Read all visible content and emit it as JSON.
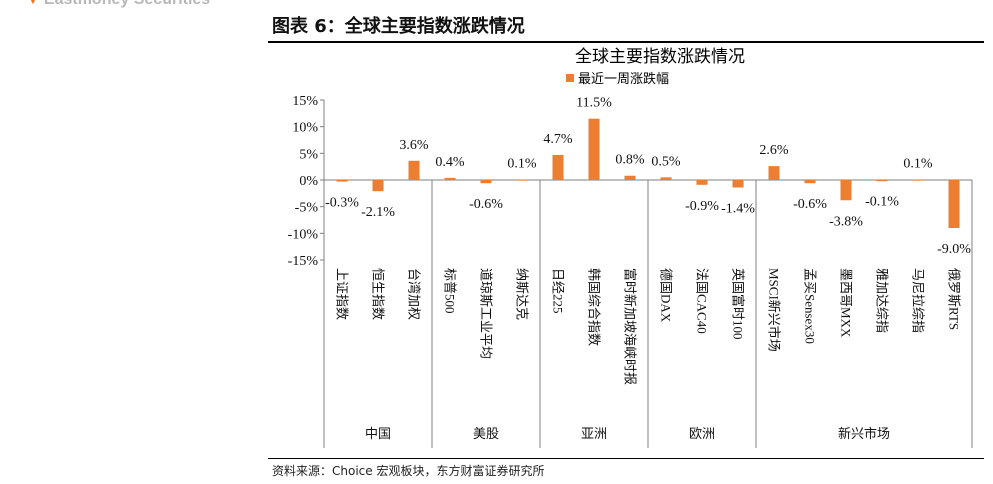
{
  "header": {
    "fragment": "Eastmoney Securities",
    "figure_title": "图表 6：全球主要指数涨跌情况",
    "source": "资料来源：Choice 宏观板块，东方财富证券研究所"
  },
  "colors": {
    "bar": "#ed7d31",
    "axis": "#7f7f7f",
    "text": "#111111"
  },
  "chart_data": {
    "type": "bar",
    "title": "全球主要指数涨跌情况",
    "legend": {
      "entries": [
        "最近一周涨跌幅"
      ],
      "placement": "top"
    },
    "ylim": [
      -15,
      15
    ],
    "yticks": [
      15,
      10,
      5,
      0,
      -5,
      -10,
      -15
    ],
    "ytick_labels": [
      "15%",
      "10%",
      "5%",
      "0%",
      "-5%",
      "-10%",
      "-15%"
    ],
    "grid": false,
    "categories": [
      "上证指数",
      "恒生指数",
      "台湾加权",
      "标普500",
      "道琼斯工业平均",
      "纳斯达克",
      "日经225",
      "韩国综合指数",
      "富时新加坡海峡时报",
      "德国DAX",
      "法国CAC40",
      "英国富时100",
      "MSCI新兴市场",
      "孟买Sensex30",
      "墨西哥MXX",
      "雅加达综指",
      "马尼拉综指",
      "俄罗斯RTS"
    ],
    "series": [
      {
        "name": "最近一周涨跌幅",
        "values": [
          -0.3,
          -2.1,
          3.6,
          0.4,
          -0.6,
          0.1,
          4.7,
          11.5,
          0.8,
          0.5,
          -0.9,
          -1.4,
          2.6,
          -0.6,
          -3.8,
          -0.1,
          0.1,
          -9.0
        ],
        "labels": [
          "-0.3%",
          "-2.1%",
          "3.6%",
          "0.4%",
          "-0.6%",
          "0.1%",
          "4.7%",
          "11.5%",
          "0.8%",
          "0.5%",
          "-0.9%",
          "-1.4%",
          "2.6%",
          "-0.6%",
          "-3.8%",
          "-0.1%",
          "0.1%",
          "-9.0%"
        ]
      }
    ],
    "groups": [
      {
        "name": "中国",
        "count": 3
      },
      {
        "name": "美股",
        "count": 3
      },
      {
        "name": "亚洲",
        "count": 3
      },
      {
        "name": "欧洲",
        "count": 3
      },
      {
        "name": "新兴市场",
        "count": 6
      }
    ]
  }
}
